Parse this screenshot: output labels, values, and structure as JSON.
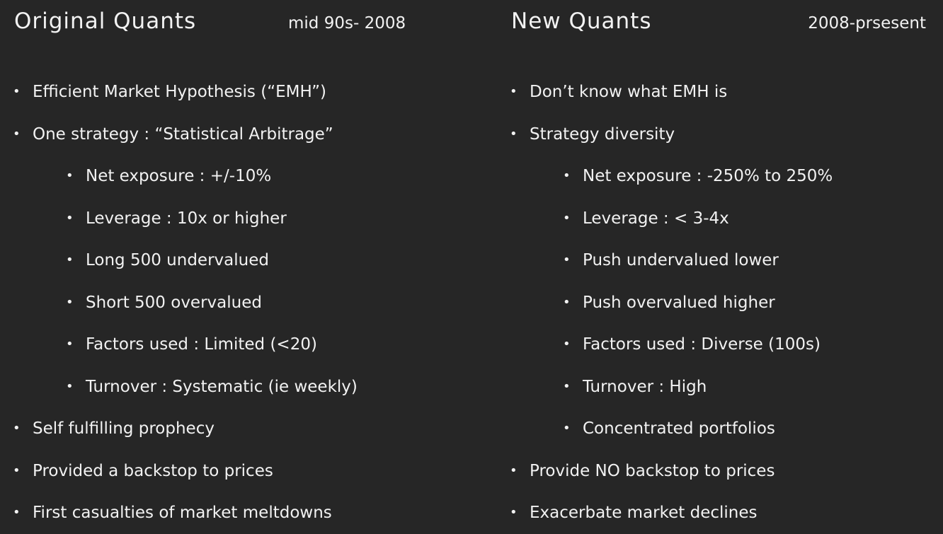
{
  "left": {
    "title": "Original Quants",
    "period": "mid 90s- 2008",
    "items": [
      {
        "level": 1,
        "text": "Efficient Market Hypothesis (“EMH”)"
      },
      {
        "level": 1,
        "text": "One strategy : “Statistical Arbitrage”"
      },
      {
        "level": 2,
        "text": "Net exposure : +/-10%"
      },
      {
        "level": 2,
        "text": "Leverage : 10x or higher"
      },
      {
        "level": 2,
        "text": "Long 500 undervalued"
      },
      {
        "level": 2,
        "text": "Short 500 overvalued"
      },
      {
        "level": 2,
        "text": "Factors used : Limited (<20)"
      },
      {
        "level": 2,
        "text": "Turnover : Systematic (ie  weekly)"
      },
      {
        "level": 1,
        "text": "Self fulfilling prophecy"
      },
      {
        "level": 1,
        "text": "Provided a backstop to prices"
      },
      {
        "level": 1,
        "text": "First casualties of market meltdowns"
      }
    ]
  },
  "right": {
    "title": "New Quants",
    "period": "2008-prsesent",
    "items": [
      {
        "level": 1,
        "text": "Don’t know what EMH is"
      },
      {
        "level": 1,
        "text": "Strategy diversity"
      },
      {
        "level": 2,
        "text": "Net exposure : -250% to 250%"
      },
      {
        "level": 2,
        "text": "Leverage : < 3-4x"
      },
      {
        "level": 2,
        "text": "Push undervalued lower"
      },
      {
        "level": 2,
        "text": "Push overvalued higher"
      },
      {
        "level": 2,
        "text": "Factors used : Diverse (100s)"
      },
      {
        "level": 2,
        "text": "Turnover : High"
      },
      {
        "level": 2,
        "text": "Concentrated portfolios"
      },
      {
        "level": 1,
        "text": "Provide NO backstop to prices"
      },
      {
        "level": 1,
        "text": "Exacerbate market declines"
      }
    ]
  },
  "bullet_glyph": "•"
}
